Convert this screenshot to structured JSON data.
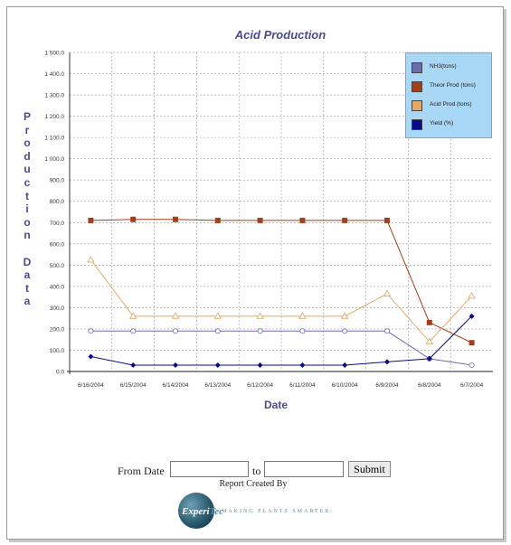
{
  "chart_data": {
    "type": "line",
    "title": "Acid Production",
    "xlabel": "Date",
    "ylabel": "Production Data",
    "ylim": [
      0,
      1500
    ],
    "yticks": [
      "0.0",
      "100.0",
      "200.0",
      "300.0",
      "400.0",
      "500.0",
      "600.0",
      "700.0",
      "800.0",
      "900.0",
      "1 000.0",
      "1 100.0",
      "1 200.0",
      "1 300.0",
      "1 400.0",
      "1 500.0"
    ],
    "categories": [
      "6/16/2004",
      "6/15/2004",
      "6/14/2004",
      "6/13/2004",
      "6/12/2004",
      "6/11/2004",
      "6/10/2004",
      "6/9/2004",
      "6/8/2004",
      "6/7/2004"
    ],
    "grid": true,
    "legend_position": "top-right",
    "series": [
      {
        "name": "NH3(tons)",
        "color": "#6b6bb0",
        "marker": "circle-open",
        "values": [
          190,
          190,
          190,
          190,
          190,
          190,
          190,
          190,
          60,
          30
        ]
      },
      {
        "name": "Theor Prod (tons)",
        "color": "#a0401c",
        "marker": "square",
        "values": [
          710,
          715,
          715,
          710,
          710,
          710,
          710,
          710,
          230,
          135
        ]
      },
      {
        "name": "Acid Prod (tons)",
        "color": "#e2a868",
        "marker": "triangle-open",
        "values": [
          525,
          260,
          260,
          260,
          260,
          260,
          260,
          365,
          140,
          355
        ]
      },
      {
        "name": "Yield (%)",
        "color": "#0a0a8c",
        "marker": "diamond",
        "values": [
          70,
          30,
          30,
          30,
          30,
          30,
          30,
          45,
          60,
          260
        ]
      }
    ]
  },
  "form": {
    "from_label": "From Date",
    "to_label": "to",
    "from_value": "",
    "to_value": "",
    "submit_label": "Submit"
  },
  "footer": {
    "credit": "Report Created By",
    "logo_name_main": "Experi",
    "logo_name_accent": "Tec",
    "logo_tagline": "MAKING PLANTS SMARTER"
  }
}
